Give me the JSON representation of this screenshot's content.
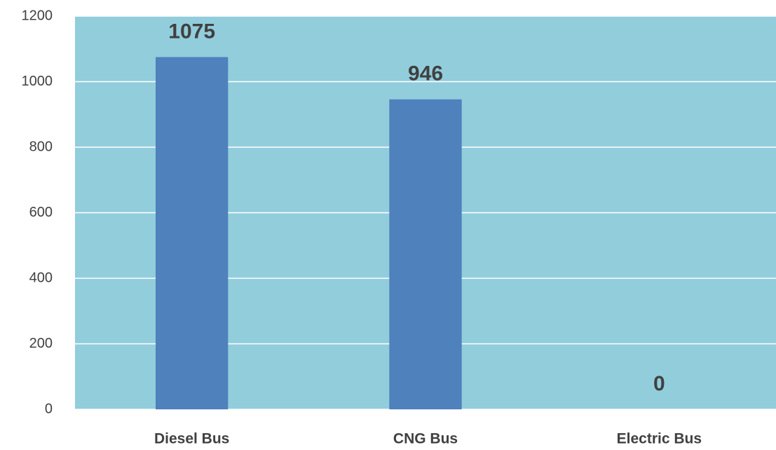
{
  "chart_data": {
    "type": "bar",
    "categories": [
      "Diesel Bus",
      "CNG Bus",
      "Electric Bus"
    ],
    "values": [
      1075,
      946,
      0
    ],
    "color": "#4f81bd",
    "plot_background": "#92cddc",
    "ylim": [
      0,
      1200
    ],
    "yticks": [
      0,
      200,
      400,
      600,
      800,
      1000,
      1200
    ],
    "grid": true
  }
}
